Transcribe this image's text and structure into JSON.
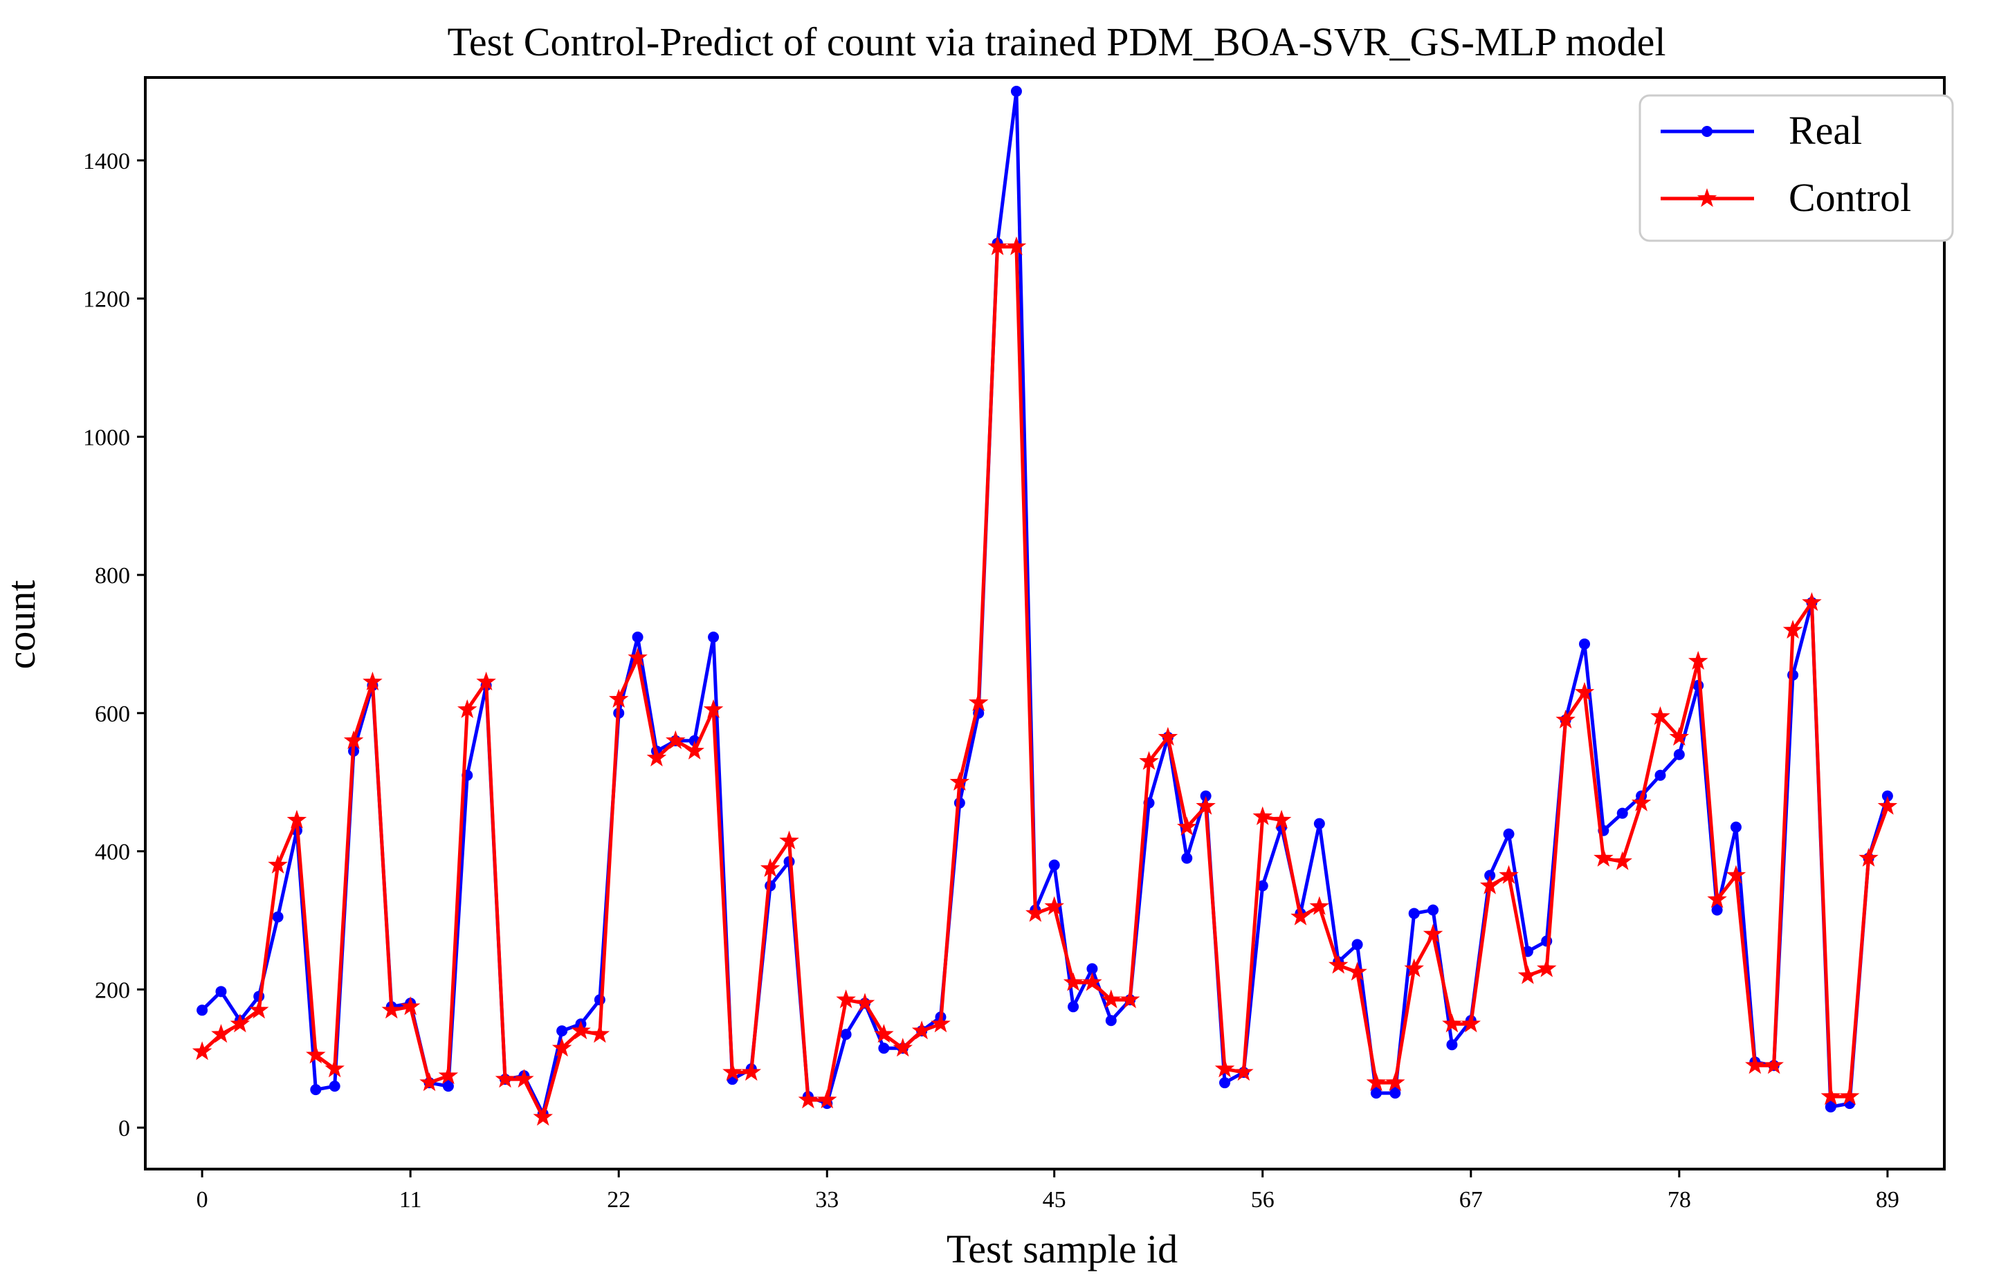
{
  "chart_data": {
    "type": "line",
    "title": "Test Control-Predict of count via trained PDM_BOA-SVR_GS-MLP model",
    "xlabel": "Test sample id",
    "ylabel": "count",
    "xlim": [
      -3,
      92
    ],
    "ylim": [
      -60,
      1520
    ],
    "xticks": [
      0,
      11,
      22,
      33,
      45,
      56,
      67,
      78,
      89
    ],
    "yticks": [
      0,
      200,
      400,
      600,
      800,
      1000,
      1200,
      1400
    ],
    "legend_position": "top-right",
    "grid": false,
    "x": [
      0,
      1,
      2,
      3,
      4,
      5,
      6,
      7,
      8,
      9,
      10,
      11,
      12,
      13,
      14,
      15,
      16,
      17,
      18,
      19,
      20,
      21,
      22,
      23,
      24,
      25,
      26,
      27,
      28,
      29,
      30,
      31,
      32,
      33,
      34,
      35,
      36,
      37,
      38,
      39,
      40,
      41,
      42,
      43,
      44,
      45,
      46,
      47,
      48,
      49,
      50,
      51,
      52,
      53,
      54,
      55,
      56,
      57,
      58,
      59,
      60,
      61,
      62,
      63,
      64,
      65,
      66,
      67,
      68,
      69,
      70,
      71,
      72,
      73,
      74,
      75,
      76,
      77,
      78,
      79,
      80,
      81,
      82,
      83,
      84,
      85,
      86,
      87,
      88,
      89
    ],
    "series": [
      {
        "name": "Real",
        "color": "#0000ff",
        "marker": "circle",
        "values": [
          170,
          197,
          155,
          190,
          305,
          430,
          55,
          60,
          545,
          640,
          175,
          180,
          65,
          60,
          510,
          640,
          70,
          75,
          20,
          140,
          150,
          185,
          600,
          710,
          545,
          560,
          560,
          710,
          70,
          85,
          350,
          385,
          45,
          35,
          135,
          180,
          115,
          115,
          140,
          160,
          470,
          600,
          1280,
          1500,
          315,
          380,
          175,
          230,
          155,
          185,
          470,
          565,
          390,
          480,
          65,
          80,
          350,
          435,
          310,
          440,
          240,
          265,
          50,
          50,
          310,
          315,
          120,
          155,
          365,
          425,
          255,
          270,
          590,
          700,
          430,
          455,
          480,
          510,
          540,
          640,
          315,
          435,
          95,
          90,
          655,
          760,
          30,
          35,
          390,
          480
        ]
      },
      {
        "name": "Control",
        "color": "#ff0000",
        "marker": "star",
        "values": [
          110,
          135,
          150,
          170,
          380,
          445,
          105,
          85,
          560,
          645,
          170,
          175,
          65,
          75,
          605,
          645,
          70,
          70,
          15,
          115,
          140,
          135,
          620,
          680,
          535,
          560,
          545,
          605,
          80,
          80,
          375,
          415,
          40,
          40,
          185,
          180,
          135,
          115,
          140,
          150,
          500,
          615,
          1275,
          1275,
          310,
          320,
          210,
          210,
          185,
          185,
          530,
          565,
          435,
          465,
          85,
          80,
          450,
          445,
          305,
          320,
          235,
          225,
          65,
          65,
          230,
          280,
          150,
          150,
          350,
          365,
          220,
          230,
          590,
          630,
          390,
          385,
          470,
          595,
          565,
          675,
          330,
          365,
          90,
          90,
          720,
          760,
          45,
          45,
          390,
          465
        ]
      }
    ]
  },
  "colors": {
    "real": "#0000ff",
    "control": "#ff0000",
    "axes": "#000000",
    "background": "#ffffff"
  }
}
